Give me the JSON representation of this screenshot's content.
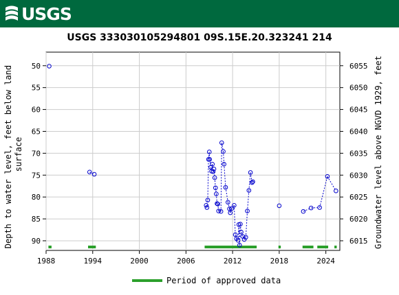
{
  "header": {
    "logo_text": "USGS",
    "brand_color": "#00693e",
    "logo_icon": "usgs-wave-icon"
  },
  "chart_data": {
    "type": "scatter",
    "title": "USGS 333030105294801 09S.15E.20.323241 214",
    "ylabel": "Depth to water level, feet below land surface",
    "ylabel2": "Groundwater level above NGVD 1929, feet",
    "xlim": [
      1988,
      2025.8
    ],
    "ylim": [
      92.2,
      46.9
    ],
    "ylim2": [
      6012.8,
      6058.1
    ],
    "x_ticks": [
      1988,
      1994,
      2000,
      2006,
      2012,
      2018,
      2024
    ],
    "y_ticks": [
      50,
      55,
      60,
      65,
      70,
      75,
      80,
      85,
      90
    ],
    "y2_ticks": [
      6015,
      6020,
      6025,
      6030,
      6035,
      6040,
      6045,
      6050,
      6055
    ],
    "grid": true,
    "series": [
      {
        "color": "#0000cc",
        "marker": "circle-open",
        "line": "dotted",
        "points": [
          [
            1988.4,
            50.1
          ],
          [
            1993.6,
            74.3
          ],
          [
            1994.2,
            74.8
          ],
          [
            2008.6,
            81.9
          ],
          [
            2008.7,
            82.4
          ],
          [
            2008.8,
            80.7
          ],
          [
            2008.9,
            71.4
          ],
          [
            2009.0,
            69.7
          ],
          [
            2009.05,
            71.4
          ],
          [
            2009.2,
            73.2
          ],
          [
            2009.3,
            74.1
          ],
          [
            2009.4,
            72.5
          ],
          [
            2009.5,
            74.2
          ],
          [
            2009.6,
            73.6
          ],
          [
            2009.7,
            75.6
          ],
          [
            2009.8,
            77.9
          ],
          [
            2009.9,
            79.3
          ],
          [
            2010.0,
            81.5
          ],
          [
            2010.1,
            81.6
          ],
          [
            2010.2,
            83.2
          ],
          [
            2010.5,
            83.3
          ],
          [
            2010.6,
            67.6
          ],
          [
            2010.8,
            69.6
          ],
          [
            2010.9,
            72.5
          ],
          [
            2011.1,
            77.8
          ],
          [
            2011.4,
            81.2
          ],
          [
            2011.6,
            82.7
          ],
          [
            2011.7,
            83.6
          ],
          [
            2011.9,
            82.6
          ],
          [
            2012.2,
            81.9
          ],
          [
            2012.35,
            88.6
          ],
          [
            2012.5,
            89.5
          ],
          [
            2012.7,
            89.9
          ],
          [
            2012.8,
            86.3
          ],
          [
            2012.9,
            91.0
          ],
          [
            2013.0,
            86.2
          ],
          [
            2013.1,
            88.0
          ],
          [
            2013.3,
            89.0
          ],
          [
            2013.5,
            89.7
          ],
          [
            2013.7,
            89.2
          ],
          [
            2013.9,
            83.2
          ],
          [
            2014.1,
            78.5
          ],
          [
            2014.3,
            74.4
          ],
          [
            2014.5,
            76.7
          ],
          [
            2014.6,
            76.5
          ],
          [
            2018.0,
            82.0
          ],
          [
            2021.1,
            83.3
          ],
          [
            2022.1,
            82.5
          ],
          [
            2023.2,
            82.4
          ],
          [
            2024.2,
            75.3
          ],
          [
            2025.3,
            78.6
          ]
        ]
      }
    ],
    "approved_periods": [
      [
        1988.3,
        1988.7
      ],
      [
        1993.4,
        1994.4
      ],
      [
        2008.4,
        2015.1
      ],
      [
        2017.9,
        2018.2
      ],
      [
        2021.0,
        2022.4
      ],
      [
        2022.9,
        2024.3
      ],
      [
        2025.1,
        2025.4
      ]
    ],
    "approved_color": "#2ca02c",
    "legend": {
      "label": "Period of approved data",
      "placement": "bottom-center"
    }
  }
}
